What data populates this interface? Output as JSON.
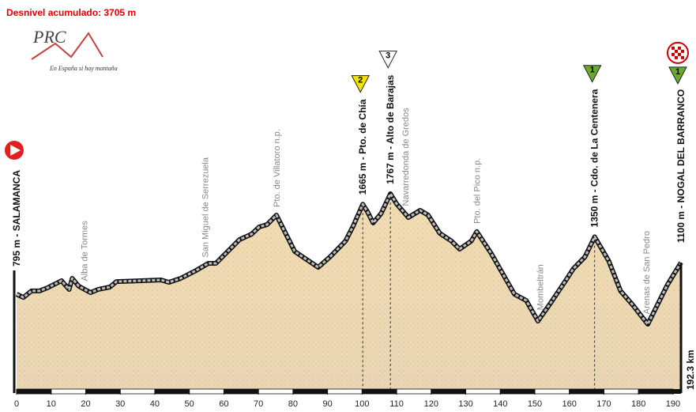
{
  "chart_data": {
    "type": "area",
    "title": "Desnivel acumulado: 3705 m",
    "logo": {
      "title": "PRC",
      "tagline": "En España si hay montaña"
    },
    "x": [
      0,
      2.0,
      4.3,
      6.6,
      8.9,
      13.0,
      15.2,
      16.1,
      18.0,
      21.4,
      23.6,
      27.0,
      28.9,
      36.1,
      41.8,
      44.1,
      47.5,
      52.0,
      55.5,
      57.7,
      61.1,
      64.5,
      68.0,
      70.2,
      72.5,
      75.2,
      80.5,
      83.9,
      87.3,
      90.7,
      95.2,
      97.5,
      100.2,
      101.6,
      103.2,
      105.5,
      108.2,
      110.0,
      113.4,
      116.8,
      119.1,
      122.5,
      125.9,
      128.2,
      131.6,
      133.2,
      137.3,
      144.1,
      147.5,
      150.9,
      154.3,
      158.9,
      161.1,
      164.5,
      167.3,
      171.4,
      174.8,
      178.2,
      182.7,
      186.1,
      188.4,
      192.3
    ],
    "values": [
      795,
      764,
      826,
      826,
      856,
      925,
      841,
      948,
      872,
      810,
      841,
      864,
      917,
      925,
      933,
      910,
      948,
      1025,
      1093,
      1093,
      1208,
      1323,
      1376,
      1445,
      1468,
      1560,
      1208,
      1132,
      1055,
      1155,
      1308,
      1460,
      1665,
      1591,
      1484,
      1575,
      1767,
      1668,
      1537,
      1606,
      1560,
      1384,
      1308,
      1231,
      1308,
      1400,
      1193,
      795,
      734,
      535,
      696,
      925,
      1040,
      1155,
      1350,
      1116,
      826,
      696,
      504,
      734,
      887,
      1100
    ],
    "xlim": [
      0,
      192.3
    ],
    "ylim": [
      -146,
      3641
    ],
    "xticks": [
      0,
      10,
      20,
      30,
      40,
      50,
      60,
      70,
      80,
      90,
      100,
      110,
      120,
      130,
      140,
      150,
      160,
      170,
      180,
      190
    ],
    "distance_label": "192.3 km",
    "start": {
      "label": "795 m - SALAMANCA",
      "x": 0
    },
    "places": [
      {
        "label": "Alba de Tormes",
        "x": 19.5
      },
      {
        "label": "San Miguel de Serrezuela",
        "x": 54.5
      },
      {
        "label": "Pto. de Villatoro n.p.",
        "x": 75.2
      },
      {
        "label": "Navarredonda de Gredos",
        "x": 112.5
      },
      {
        "label": "Pto. del Pico n.p.",
        "x": 133.2
      },
      {
        "label": "Mombeltrán",
        "x": 151.5
      },
      {
        "label": "Arenas de San Pedro",
        "x": 182.2
      }
    ],
    "climbs": [
      {
        "label": "1665 m - Pto. de Chía",
        "x": 100.2,
        "category": "2",
        "color": "#f2e600"
      },
      {
        "label": "1767 m - Alto de Barajas",
        "x": 108.2,
        "category": "3",
        "color": "#ffffff"
      },
      {
        "label": "1350 m - Cdo. de La Centenera",
        "x": 167.3,
        "category": "1",
        "color": "#6aa832"
      }
    ],
    "finish": {
      "label": "1100 m - NOGAL DEL BARRANCO",
      "x": 192.3,
      "category": "1",
      "color": "#6aa832"
    }
  }
}
